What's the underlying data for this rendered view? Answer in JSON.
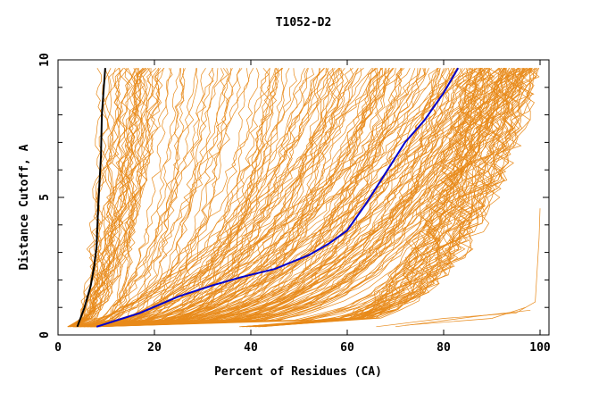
{
  "chart_data": {
    "type": "line",
    "title": "T1052-D2",
    "xlabel": "Percent of Residues (CA)",
    "ylabel": "Distance Cutoff, A",
    "xlim": [
      0,
      100
    ],
    "ylim": [
      0,
      10
    ],
    "x_ticks": [
      0,
      20,
      40,
      60,
      80,
      100
    ],
    "y_ticks": [
      0,
      5,
      10
    ],
    "y_ticks_drawn": [
      0,
      1,
      2,
      3,
      4,
      5,
      6,
      7,
      8,
      9,
      10
    ],
    "grid": false,
    "legend": "none",
    "colors": {
      "models": "#e88a1a",
      "highlight_black": "#000000",
      "highlight_blue": "#0000cc"
    },
    "series": [
      {
        "color": "#000000",
        "x": [
          4.0,
          5.5,
          6.8,
          7.5,
          8.0,
          8.3,
          8.6,
          8.9,
          9.1,
          9.5,
          9.8
        ],
        "y": [
          0.3,
          1.0,
          1.8,
          2.5,
          3.2,
          4.5,
          5.5,
          6.5,
          8.0,
          9.0,
          9.7
        ]
      },
      {
        "color": "#0000cc",
        "x": [
          8,
          17,
          25,
          32,
          38,
          45,
          52,
          56,
          60,
          64,
          68,
          72,
          76,
          80,
          83
        ],
        "y": [
          0.3,
          0.8,
          1.4,
          1.8,
          2.1,
          2.4,
          2.9,
          3.3,
          3.8,
          4.8,
          5.9,
          7.0,
          7.8,
          8.8,
          9.7
        ]
      }
    ]
  }
}
